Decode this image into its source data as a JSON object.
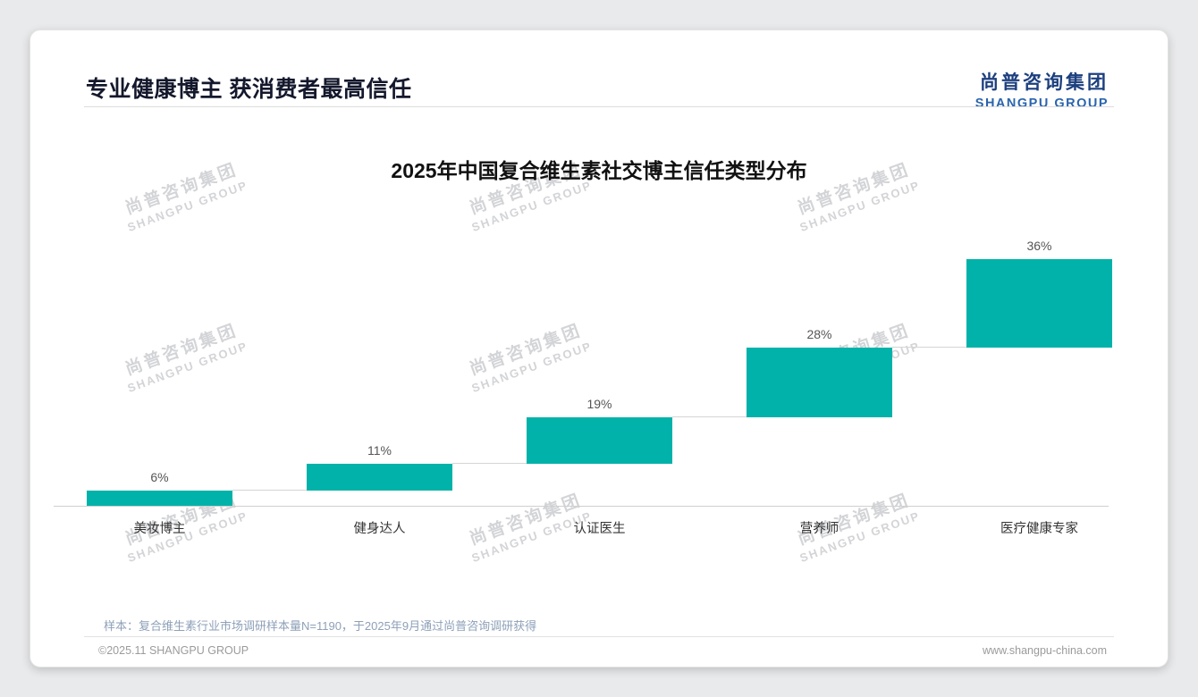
{
  "page": {
    "title": "专业健康博主 获消费者最高信任",
    "source_note": "样本：复合维生素行业市场调研样本量N=1190，于2025年9月通过尚普咨询调研获得",
    "footer_left": "©2025.11 SHANGPU GROUP",
    "footer_right": "www.shangpu-china.com"
  },
  "logo": {
    "cn": "尚普咨询集团",
    "en": "SHANGPU GROUP"
  },
  "watermark": {
    "line1": "尚普咨询集团",
    "line2": "SHANGPU GROUP"
  },
  "chart_data": {
    "type": "bar",
    "variant": "waterfall-step",
    "title": "2025年中国复合维生素社交博主信任类型分布",
    "categories": [
      "美妆博主",
      "健身达人",
      "认证医生",
      "营养师",
      "医疗健康专家"
    ],
    "values": [
      6,
      11,
      19,
      28,
      36
    ],
    "value_labels": [
      "6%",
      "11%",
      "19%",
      "28%",
      "36%"
    ],
    "unit": "%",
    "cumulative": true,
    "total": 100,
    "ylim": [
      0,
      100
    ],
    "bar_color": "#00b2a9",
    "baseline_visible": true,
    "grid": false,
    "legend": false,
    "xlabel": "",
    "ylabel": ""
  }
}
